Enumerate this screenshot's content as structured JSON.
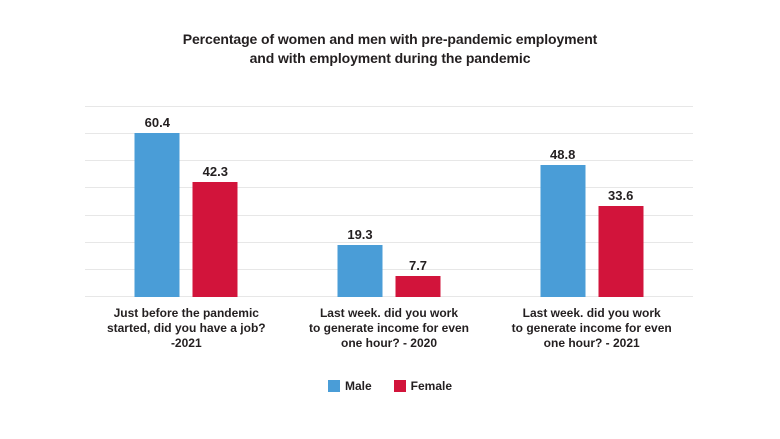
{
  "chart_data": {
    "type": "bar",
    "title": "Percentage of women and men with pre-pandemic employment and with employment during the pandemic",
    "title_lines": [
      "Percentage of women and men with pre-pandemic employment",
      "and with employment during the pandemic"
    ],
    "categories": [
      "Just before the pandemic\nstarted, did you have a job?\n-2021",
      "Last week. did you work\nto generate income for even\none hour? - 2020",
      "Last week. did you work\nto generate income for even\none hour? - 2021"
    ],
    "series": [
      {
        "name": "Male",
        "color": "#4a9dd7",
        "values": [
          60.4,
          19.3,
          48.8
        ]
      },
      {
        "name": "Female",
        "color": "#d2143b",
        "values": [
          42.3,
          7.7,
          33.6
        ]
      }
    ],
    "ylim": [
      0,
      70
    ],
    "grid_step": 10,
    "grid": true,
    "y_axis_labels_visible": false,
    "value_labels": true,
    "legend_position": "bottom",
    "xlabel": "",
    "ylabel": ""
  },
  "colors": {
    "text": "#231f20",
    "gridline": "#e7e7e7",
    "background": "#ffffff"
  }
}
